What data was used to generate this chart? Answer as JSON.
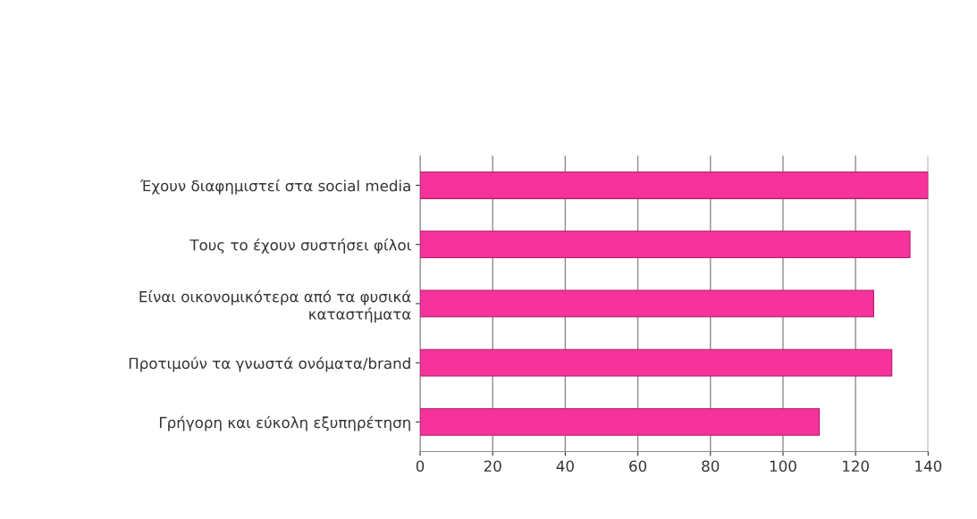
{
  "chart_data": {
    "type": "bar",
    "orientation": "horizontal",
    "categories": [
      "Έχουν διαφημιστεί στα social media",
      "Τους το έχουν συστήσει φίλοι",
      "Είναι οικονομικότερα από τα φυσικά\nκαταστήματα",
      "Προτιμούν τα γνωστά ονόματα/brand",
      "Γρήγορη και εύκολη εξυπηρέτηση"
    ],
    "values": [
      140,
      135,
      125,
      130,
      110
    ],
    "color": "#f5339a",
    "xlim": [
      0,
      140
    ],
    "xticks": [
      0,
      20,
      40,
      60,
      80,
      100,
      120,
      140
    ],
    "grid": "x"
  }
}
